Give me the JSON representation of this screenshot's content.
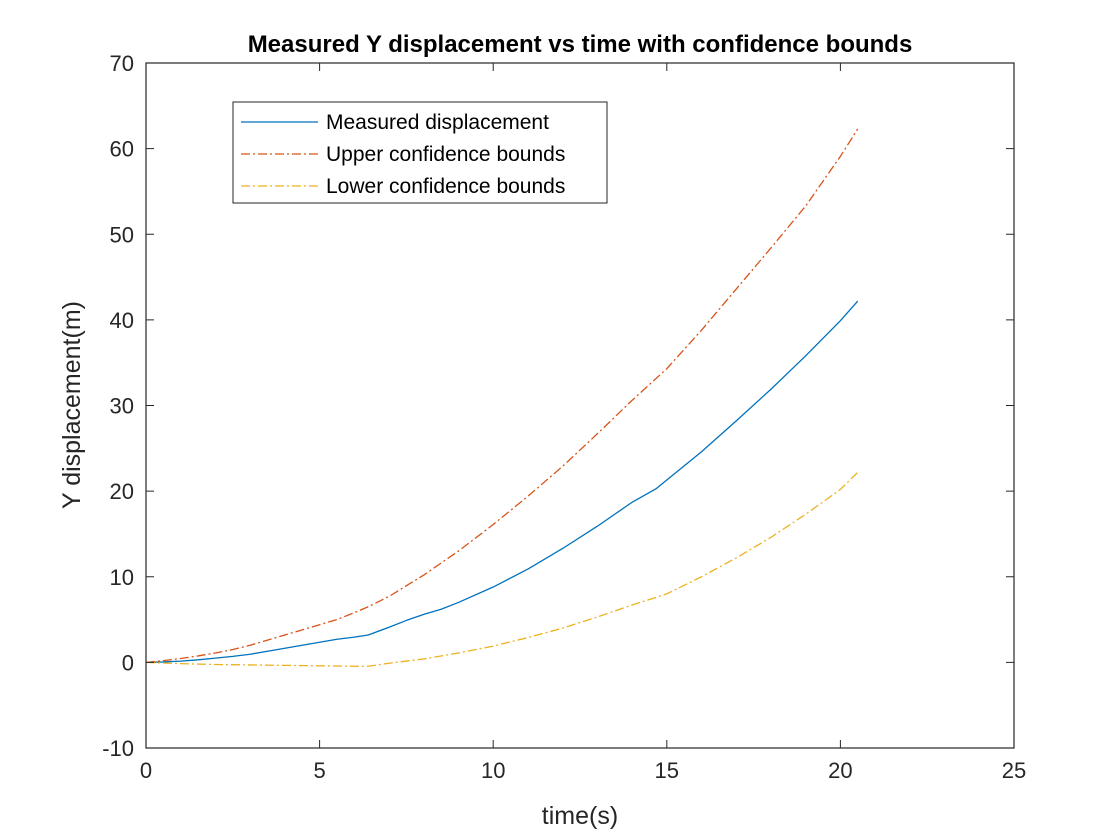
{
  "chart_data": {
    "type": "line",
    "title": "Measured Y displacement vs time with confidence bounds",
    "xlabel": "time(s)",
    "ylabel": "Y displacement(m)",
    "xlim": [
      0,
      25
    ],
    "ylim": [
      -10,
      70
    ],
    "xticks": [
      0,
      5,
      10,
      15,
      20,
      25
    ],
    "yticks": [
      -10,
      0,
      10,
      20,
      30,
      40,
      50,
      60,
      70
    ],
    "xtick_labels": [
      "0",
      "5",
      "10",
      "15",
      "20",
      "25"
    ],
    "ytick_labels": [
      "-10",
      "0",
      "10",
      "20",
      "30",
      "40",
      "50",
      "60",
      "70"
    ],
    "grid": false,
    "legend_position": "top-left",
    "series": [
      {
        "name": "Measured displacement",
        "color": "#0072BD",
        "style": "solid",
        "x": [
          0,
          0.5,
          1,
          1.5,
          2,
          2.5,
          3,
          3.5,
          4,
          4.5,
          5,
          5.5,
          6,
          6.4,
          7,
          7.5,
          8,
          8.5,
          9,
          10,
          11,
          12,
          13,
          14,
          14.7,
          15,
          16,
          17,
          18,
          19,
          20,
          20.5
        ],
        "y": [
          0,
          0.05,
          0.15,
          0.3,
          0.5,
          0.7,
          0.95,
          1.3,
          1.65,
          2.0,
          2.35,
          2.7,
          2.95,
          3.2,
          4.1,
          4.9,
          5.6,
          6.2,
          7.0,
          8.8,
          10.9,
          13.3,
          15.9,
          18.7,
          20.3,
          21.3,
          24.6,
          28.2,
          31.9,
          35.8,
          39.9,
          42.2
        ]
      },
      {
        "name": "Upper confidence bounds",
        "color": "#D95319",
        "style": "dashdot",
        "x": [
          0,
          0.5,
          1,
          1.5,
          2,
          2.5,
          3,
          3.5,
          4,
          4.5,
          5,
          5.5,
          6,
          6.4,
          7,
          8,
          9,
          10,
          11,
          12,
          13,
          14,
          15,
          16,
          17,
          18,
          19,
          20,
          20.5
        ],
        "y": [
          0,
          0.2,
          0.45,
          0.75,
          1.1,
          1.5,
          2.0,
          2.6,
          3.2,
          3.8,
          4.4,
          5.0,
          5.8,
          6.5,
          7.7,
          10.2,
          13.0,
          16.1,
          19.4,
          22.9,
          26.7,
          30.6,
          34.3,
          38.8,
          43.6,
          48.4,
          53.3,
          59.1,
          62.3
        ]
      },
      {
        "name": "Lower confidence bounds",
        "color": "#EDB120",
        "style": "dashdot",
        "x": [
          0,
          1,
          2,
          3,
          4,
          5,
          6,
          6.4,
          7,
          8,
          9,
          10,
          11,
          12,
          13,
          14,
          15,
          16,
          17,
          18,
          19,
          20,
          20.5
        ],
        "y": [
          0,
          -0.15,
          -0.25,
          -0.3,
          -0.35,
          -0.4,
          -0.45,
          -0.45,
          -0.1,
          0.4,
          1.1,
          1.9,
          2.9,
          4.0,
          5.3,
          6.7,
          8.0,
          10.0,
          12.2,
          14.6,
          17.3,
          20.2,
          22.2
        ]
      }
    ]
  }
}
